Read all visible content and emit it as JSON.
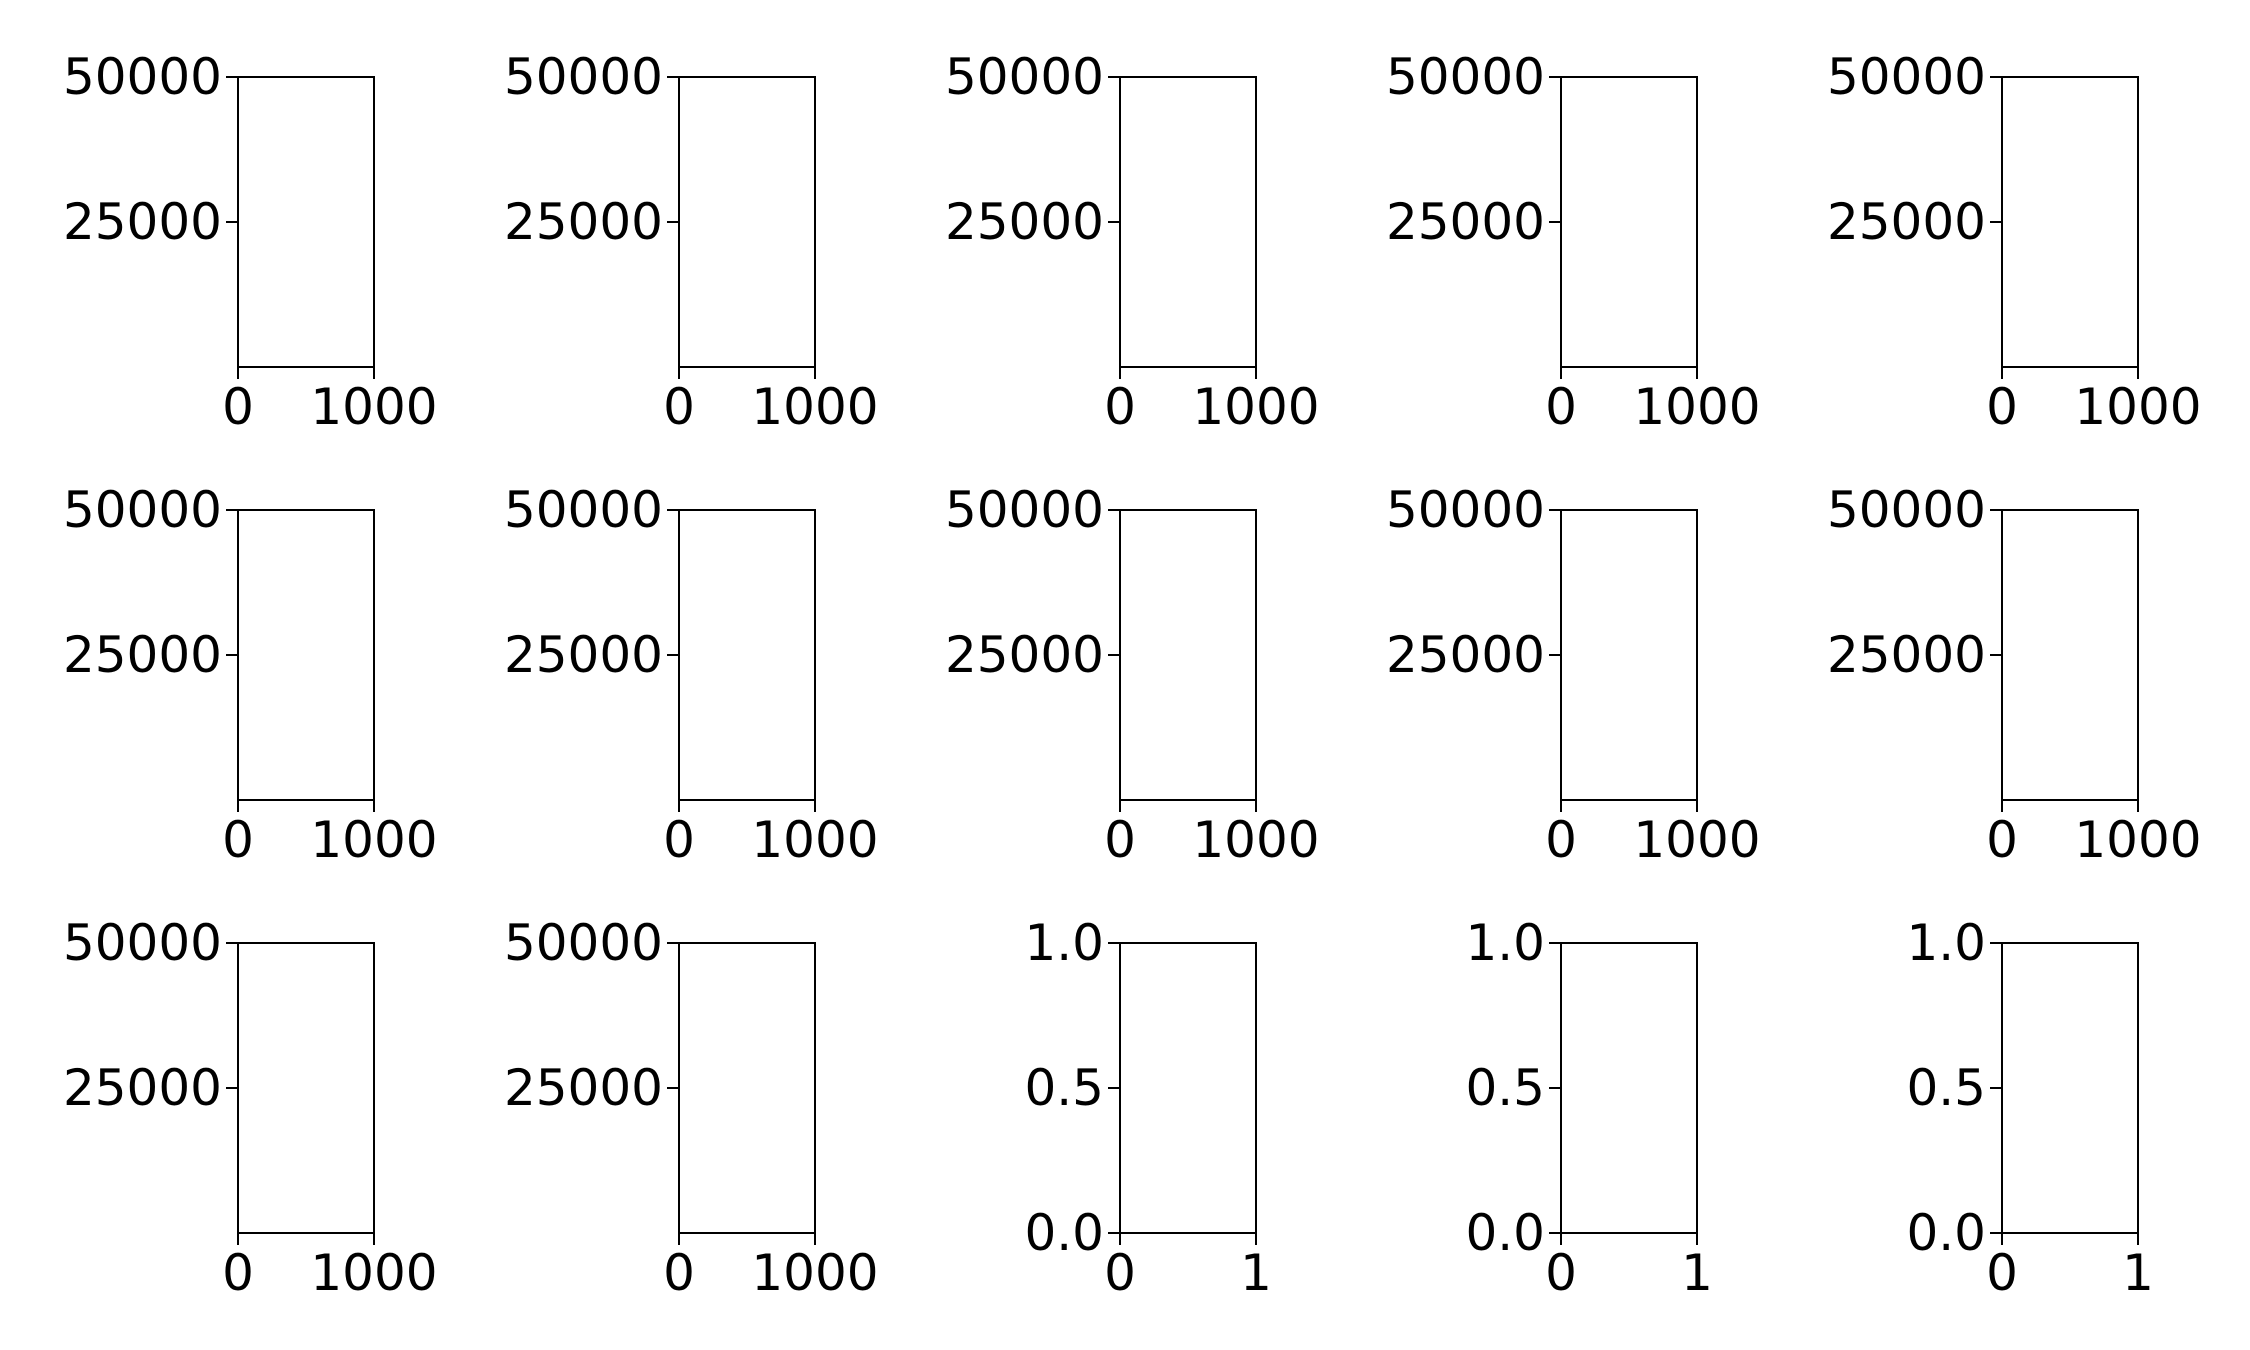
{
  "chart_data": [
    {
      "type": "bar",
      "title": "",
      "xlabel": "",
      "ylabel": "",
      "xlim": [
        0,
        1000
      ],
      "ylim": [
        0,
        50000
      ],
      "xticks": [
        0,
        1000
      ],
      "xtick_labels": [
        "0",
        "1000"
      ],
      "yticks": [
        25000,
        50000
      ],
      "ytick_labels": [
        "25000",
        "50000"
      ],
      "grid": false,
      "series": []
    },
    {
      "type": "bar",
      "title": "",
      "xlabel": "",
      "ylabel": "",
      "xlim": [
        0,
        1000
      ],
      "ylim": [
        0,
        50000
      ],
      "xticks": [
        0,
        1000
      ],
      "xtick_labels": [
        "0",
        "1000"
      ],
      "yticks": [
        25000,
        50000
      ],
      "ytick_labels": [
        "25000",
        "50000"
      ],
      "grid": false,
      "series": []
    },
    {
      "type": "bar",
      "title": "",
      "xlabel": "",
      "ylabel": "",
      "xlim": [
        0,
        1000
      ],
      "ylim": [
        0,
        50000
      ],
      "xticks": [
        0,
        1000
      ],
      "xtick_labels": [
        "0",
        "1000"
      ],
      "yticks": [
        25000,
        50000
      ],
      "ytick_labels": [
        "25000",
        "50000"
      ],
      "grid": false,
      "series": []
    },
    {
      "type": "bar",
      "title": "",
      "xlabel": "",
      "ylabel": "",
      "xlim": [
        0,
        1000
      ],
      "ylim": [
        0,
        50000
      ],
      "xticks": [
        0,
        1000
      ],
      "xtick_labels": [
        "0",
        "1000"
      ],
      "yticks": [
        25000,
        50000
      ],
      "ytick_labels": [
        "25000",
        "50000"
      ],
      "grid": false,
      "series": []
    },
    {
      "type": "bar",
      "title": "",
      "xlabel": "",
      "ylabel": "",
      "xlim": [
        0,
        1000
      ],
      "ylim": [
        0,
        50000
      ],
      "xticks": [
        0,
        1000
      ],
      "xtick_labels": [
        "0",
        "1000"
      ],
      "yticks": [
        25000,
        50000
      ],
      "ytick_labels": [
        "25000",
        "50000"
      ],
      "grid": false,
      "series": []
    },
    {
      "type": "bar",
      "title": "",
      "xlabel": "",
      "ylabel": "",
      "xlim": [
        0,
        1000
      ],
      "ylim": [
        0,
        50000
      ],
      "xticks": [
        0,
        1000
      ],
      "xtick_labels": [
        "0",
        "1000"
      ],
      "yticks": [
        25000,
        50000
      ],
      "ytick_labels": [
        "25000",
        "50000"
      ],
      "grid": false,
      "series": []
    },
    {
      "type": "bar",
      "title": "",
      "xlabel": "",
      "ylabel": "",
      "xlim": [
        0,
        1000
      ],
      "ylim": [
        0,
        50000
      ],
      "xticks": [
        0,
        1000
      ],
      "xtick_labels": [
        "0",
        "1000"
      ],
      "yticks": [
        25000,
        50000
      ],
      "ytick_labels": [
        "25000",
        "50000"
      ],
      "grid": false,
      "series": []
    },
    {
      "type": "bar",
      "title": "",
      "xlabel": "",
      "ylabel": "",
      "xlim": [
        0,
        1000
      ],
      "ylim": [
        0,
        50000
      ],
      "xticks": [
        0,
        1000
      ],
      "xtick_labels": [
        "0",
        "1000"
      ],
      "yticks": [
        25000,
        50000
      ],
      "ytick_labels": [
        "25000",
        "50000"
      ],
      "grid": false,
      "series": []
    },
    {
      "type": "bar",
      "title": "",
      "xlabel": "",
      "ylabel": "",
      "xlim": [
        0,
        1000
      ],
      "ylim": [
        0,
        50000
      ],
      "xticks": [
        0,
        1000
      ],
      "xtick_labels": [
        "0",
        "1000"
      ],
      "yticks": [
        25000,
        50000
      ],
      "ytick_labels": [
        "25000",
        "50000"
      ],
      "grid": false,
      "series": []
    },
    {
      "type": "bar",
      "title": "",
      "xlabel": "",
      "ylabel": "",
      "xlim": [
        0,
        1000
      ],
      "ylim": [
        0,
        50000
      ],
      "xticks": [
        0,
        1000
      ],
      "xtick_labels": [
        "0",
        "1000"
      ],
      "yticks": [
        25000,
        50000
      ],
      "ytick_labels": [
        "25000",
        "50000"
      ],
      "grid": false,
      "series": []
    },
    {
      "type": "bar",
      "title": "",
      "xlabel": "",
      "ylabel": "",
      "xlim": [
        0,
        1000
      ],
      "ylim": [
        0,
        50000
      ],
      "xticks": [
        0,
        1000
      ],
      "xtick_labels": [
        "0",
        "1000"
      ],
      "yticks": [
        25000,
        50000
      ],
      "ytick_labels": [
        "25000",
        "50000"
      ],
      "grid": false,
      "series": []
    },
    {
      "type": "bar",
      "title": "",
      "xlabel": "",
      "ylabel": "",
      "xlim": [
        0,
        1000
      ],
      "ylim": [
        0,
        50000
      ],
      "xticks": [
        0,
        1000
      ],
      "xtick_labels": [
        "0",
        "1000"
      ],
      "yticks": [
        25000,
        50000
      ],
      "ytick_labels": [
        "25000",
        "50000"
      ],
      "grid": false,
      "series": []
    },
    {
      "type": "line",
      "title": "",
      "xlabel": "",
      "ylabel": "",
      "xlim": [
        0,
        1
      ],
      "ylim": [
        0,
        1
      ],
      "xticks": [
        0,
        1
      ],
      "xtick_labels": [
        "0",
        "1"
      ],
      "yticks": [
        0,
        0.5,
        1
      ],
      "ytick_labels": [
        "0.0",
        "0.5",
        "1.0"
      ],
      "grid": false,
      "series": []
    },
    {
      "type": "line",
      "title": "",
      "xlabel": "",
      "ylabel": "",
      "xlim": [
        0,
        1
      ],
      "ylim": [
        0,
        1
      ],
      "xticks": [
        0,
        1
      ],
      "xtick_labels": [
        "0",
        "1"
      ],
      "yticks": [
        0,
        0.5,
        1
      ],
      "ytick_labels": [
        "0.0",
        "0.5",
        "1.0"
      ],
      "grid": false,
      "series": []
    },
    {
      "type": "line",
      "title": "",
      "xlabel": "",
      "ylabel": "",
      "xlim": [
        0,
        1
      ],
      "ylim": [
        0,
        1
      ],
      "xticks": [
        0,
        1
      ],
      "xtick_labels": [
        "0",
        "1"
      ],
      "yticks": [
        0,
        0.5,
        1
      ],
      "ytick_labels": [
        "0.0",
        "0.5",
        "1.0"
      ],
      "grid": false,
      "series": []
    }
  ]
}
